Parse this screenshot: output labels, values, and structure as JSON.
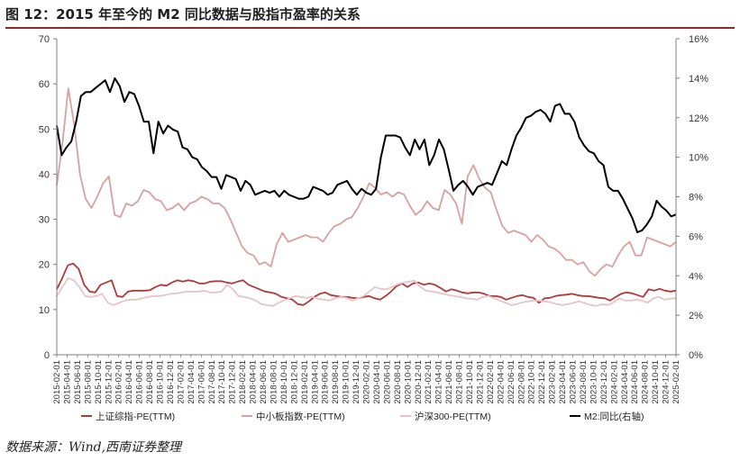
{
  "page": {
    "title": "图 12：2015 年至今的 M2 同比数据与股指市盈率的关系",
    "source": "数据来源：Wind,西南证券整理"
  },
  "chart_data": {
    "type": "line",
    "title": "",
    "y_left": {
      "min": 0,
      "max": 70,
      "ticks": [
        0,
        10,
        20,
        30,
        40,
        50,
        60,
        70
      ]
    },
    "y_right": {
      "min": 0,
      "max": 16,
      "ticks": [
        0,
        2,
        4,
        6,
        8,
        10,
        12,
        14,
        16
      ],
      "tick_labels": [
        "0%",
        "2%",
        "4%",
        "6%",
        "8%",
        "10%",
        "12%",
        "14%",
        "16%"
      ]
    },
    "x_labels": [
      "2015-02-01",
      "2015-04-01",
      "2015-06-01",
      "2015-08-01",
      "2015-10-01",
      "2015-12-01",
      "2016-02-01",
      "2016-04-01",
      "2016-06-01",
      "2016-08-01",
      "2016-10-01",
      "2016-12-01",
      "2017-02-01",
      "2017-04-01",
      "2017-06-01",
      "2017-08-01",
      "2017-10-01",
      "2017-12-01",
      "2018-02-01",
      "2018-04-01",
      "2018-06-01",
      "2018-08-01",
      "2018-10-01",
      "2018-12-01",
      "2019-02-01",
      "2019-04-01",
      "2019-06-01",
      "2019-08-01",
      "2019-10-01",
      "2019-12-01",
      "2020-02-01",
      "2020-04-01",
      "2020-06-01",
      "2020-08-01",
      "2020-10-01",
      "2020-12-01",
      "2021-02-01",
      "2021-04-01",
      "2021-06-01",
      "2021-08-01",
      "2021-10-01",
      "2021-12-01",
      "2022-02-01",
      "2022-04-01",
      "2022-06-01",
      "2022-08-01",
      "2022-10-01",
      "2022-12-01",
      "2023-02-01",
      "2023-04-01",
      "2023-06-01",
      "2023-08-01",
      "2023-10-01",
      "2023-12-01",
      "2024-02-01",
      "2024-04-01",
      "2024-06-01",
      "2024-08-01",
      "2024-10-01",
      "2024-12-01",
      "2025-02-01"
    ],
    "legend_position": "bottom",
    "series": [
      {
        "name": "上证综指-PE(TTM)",
        "axis": "left",
        "color": "#b03a3a",
        "values": [
          14.5,
          17.0,
          19.8,
          20.2,
          19.0,
          15.5,
          14.0,
          13.8,
          15.5,
          16.0,
          16.5,
          13.0,
          12.8,
          14.0,
          14.2,
          14.2,
          14.2,
          14.3,
          15.0,
          15.5,
          15.3,
          16.0,
          16.5,
          16.2,
          16.5,
          16.3,
          15.8,
          15.8,
          16.2,
          16.3,
          16.3,
          16.0,
          15.8,
          16.2,
          16.5,
          15.5,
          15.0,
          14.5,
          14.0,
          13.8,
          13.5,
          12.8,
          12.5,
          12.2,
          11.2,
          11.0,
          11.8,
          12.8,
          13.5,
          13.8,
          13.2,
          13.0,
          12.8,
          12.8,
          12.6,
          12.5,
          12.8,
          13.0,
          12.5,
          12.2,
          13.0,
          14.0,
          15.2,
          15.8,
          15.0,
          15.8,
          16.0,
          15.5,
          15.8,
          15.5,
          14.8,
          14.0,
          14.5,
          14.2,
          13.8,
          13.6,
          13.8,
          13.8,
          13.5,
          13.0,
          13.0,
          12.8,
          12.2,
          12.6,
          13.0,
          13.2,
          12.8,
          12.6,
          11.5,
          12.5,
          12.6,
          13.0,
          13.2,
          13.3,
          13.5,
          13.2,
          13.0,
          13.0,
          12.8,
          12.6,
          12.5,
          12.0,
          12.8,
          13.5,
          13.8,
          13.6,
          13.2,
          12.8,
          14.5,
          14.2,
          14.6,
          14.2,
          14.0,
          14.2
        ]
      },
      {
        "name": "中小板指数-PE(TTM)",
        "axis": "left",
        "color": "#d9a0a0",
        "values": [
          37.5,
          47.0,
          59.0,
          51.0,
          40.0,
          34.5,
          32.5,
          35.0,
          38.0,
          39.5,
          31.0,
          30.5,
          33.5,
          33.0,
          34.0,
          36.5,
          36.0,
          34.5,
          34.0,
          32.0,
          32.5,
          33.5,
          32.0,
          33.5,
          34.0,
          35.0,
          34.5,
          33.5,
          33.5,
          32.5,
          30.0,
          27.0,
          24.0,
          22.5,
          22.0,
          20.0,
          20.5,
          19.5,
          24.5,
          27.0,
          25.0,
          25.5,
          26.0,
          26.5,
          26.0,
          26.0,
          25.0,
          27.0,
          28.5,
          29.0,
          30.0,
          30.5,
          32.5,
          35.0,
          38.0,
          37.0,
          35.5,
          36.0,
          35.0,
          36.0,
          35.5,
          33.0,
          31.0,
          32.0,
          34.0,
          32.5,
          32.0,
          36.5,
          35.5,
          33.5,
          29.0,
          39.5,
          42.0,
          39.0,
          37.0,
          36.0,
          32.0,
          28.5,
          27.0,
          27.5,
          27.0,
          26.5,
          25.0,
          26.5,
          25.5,
          24.0,
          23.5,
          22.5,
          21.0,
          21.0,
          20.0,
          20.5,
          18.5,
          17.5,
          19.0,
          20.0,
          19.5,
          22.0,
          24.0,
          25.0,
          22.0,
          22.0,
          26.0,
          25.5,
          25.0,
          24.5,
          24.0,
          25.0
        ]
      },
      {
        "name": "沪深300-PE(TTM)",
        "axis": "left",
        "color": "#e6c4c8",
        "values": [
          13.0,
          15.0,
          17.0,
          16.5,
          15.0,
          13.0,
          12.8,
          13.0,
          13.5,
          11.5,
          11.0,
          11.5,
          12.0,
          12.2,
          12.2,
          12.5,
          12.8,
          13.0,
          13.0,
          13.2,
          13.5,
          13.6,
          13.8,
          14.0,
          14.0,
          14.0,
          14.2,
          13.8,
          13.8,
          14.0,
          15.5,
          14.5,
          13.0,
          12.8,
          12.5,
          12.0,
          11.2,
          11.0,
          10.8,
          11.5,
          12.0,
          12.5,
          13.0,
          12.8,
          12.6,
          12.8,
          12.4,
          12.2,
          12.0,
          12.5,
          12.8,
          12.6,
          12.0,
          12.5,
          13.0,
          14.0,
          15.0,
          14.6,
          14.5,
          15.0,
          15.6,
          16.0,
          16.2,
          16.4,
          15.0,
          14.2,
          14.0,
          13.8,
          13.5,
          13.2,
          13.0,
          12.8,
          12.5,
          12.4,
          12.2,
          12.8,
          13.0,
          12.5,
          12.0,
          11.5,
          11.0,
          11.2,
          11.6,
          11.8,
          12.0,
          12.0,
          11.8,
          11.6,
          11.2,
          11.0,
          11.2,
          11.5,
          11.8,
          11.4,
          11.0,
          10.8,
          11.2,
          11.0,
          11.6,
          12.5,
          12.0,
          12.0,
          12.2,
          12.0,
          11.5,
          12.5,
          12.8,
          12.2,
          12.4,
          12.5
        ]
      },
      {
        "name": "M2:同比(右轴)",
        "axis": "right",
        "color": "#000000",
        "values": [
          11.6,
          10.1,
          10.5,
          10.8,
          11.8,
          13.1,
          13.3,
          13.3,
          13.5,
          13.7,
          13.9,
          13.3,
          14.0,
          13.6,
          12.8,
          13.3,
          13.2,
          12.6,
          11.8,
          11.8,
          10.2,
          11.8,
          11.2,
          11.6,
          11.4,
          11.3,
          10.5,
          10.4,
          10.0,
          9.9,
          9.5,
          9.3,
          9.0,
          9.0,
          8.4,
          9.1,
          9.0,
          8.9,
          8.3,
          8.8,
          8.6,
          8.1,
          8.2,
          8.3,
          8.2,
          8.3,
          8.0,
          8.3,
          8.1,
          8.0,
          7.9,
          7.9,
          8.0,
          8.5,
          8.4,
          8.3,
          8.1,
          8.2,
          8.6,
          8.7,
          8.8,
          8.4,
          8.1,
          8.4,
          8.2,
          8.1,
          8.4,
          10.0,
          11.1,
          11.1,
          11.1,
          11.0,
          10.5,
          10.1,
          10.9,
          10.4,
          10.9,
          9.6,
          10.1,
          10.9,
          10.4,
          9.4,
          8.3,
          8.6,
          8.8,
          8.5,
          8.1,
          8.5,
          8.6,
          8.7,
          8.6,
          9.2,
          9.8,
          9.6,
          10.4,
          11.1,
          11.5,
          12.0,
          12.1,
          12.3,
          12.4,
          12.2,
          11.8,
          12.6,
          12.7,
          12.2,
          12.2,
          11.8,
          11.0,
          10.6,
          10.3,
          10.2,
          9.8,
          9.6,
          8.5,
          8.3,
          8.3,
          7.9,
          7.4,
          6.9,
          6.2,
          6.3,
          6.6,
          7.0,
          7.8,
          7.5,
          7.3,
          7.0,
          7.1
        ]
      }
    ]
  }
}
